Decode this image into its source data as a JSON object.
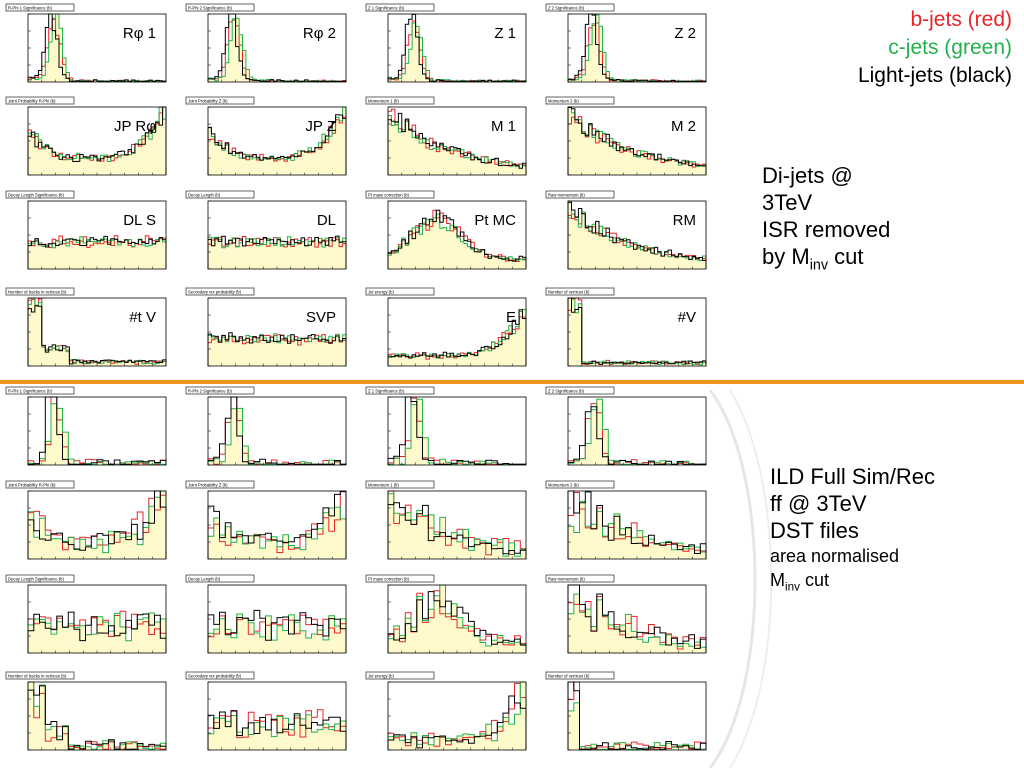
{
  "legend": {
    "b": "b-jets (red)",
    "c": "c-jets (green)",
    "light": "Light-jets (black)",
    "colors": {
      "b": "#e8252a",
      "c": "#22b14c",
      "light": "#000000"
    }
  },
  "note_top": {
    "line1": "Di-jets @",
    "line2": "3TeV",
    "line3": "ISR removed",
    "line4_pre": "by M",
    "line4_sub": "inv",
    "line4_post": " cut"
  },
  "note_bottom": {
    "line1": "ILD Full Sim/Rec",
    "line2": "ff @ 3TeV",
    "line3": "DST files",
    "line4": "area normalised",
    "line5_pre": "M",
    "line5_sub": "inv",
    "line5_post": " cut"
  },
  "colors": {
    "fill": "#fffacc",
    "divider": "#f0921e",
    "frame": "#000000"
  },
  "chart_data": [
    {
      "type": "area",
      "section": "di-jets",
      "title": "R-Phi 1 Significance  (b)",
      "label": "Rφ 1",
      "log_y": false,
      "ylim": [
        0,
        80
      ]
    },
    {
      "type": "area",
      "section": "di-jets",
      "title": "R-Phi 2 Significance  (b)",
      "label": "Rφ 2",
      "log_y": false,
      "ylim": [
        0,
        200
      ]
    },
    {
      "type": "area",
      "section": "di-jets",
      "title": "Z 1 Significance  (b)",
      "label": "Z 1",
      "log_y": false,
      "ylim": [
        0,
        50
      ]
    },
    {
      "type": "area",
      "section": "di-jets",
      "title": "Z 2 Significance  (b)",
      "label": "Z 2",
      "log_y": false,
      "ylim": [
        0,
        100
      ]
    },
    {
      "type": "area",
      "section": "di-jets",
      "title": "Joint Probability R-Phi  (b)",
      "label": "JP Rφ",
      "log_y": true
    },
    {
      "type": "area",
      "section": "di-jets",
      "title": "Joint Probability Z  (b)",
      "label": "JP Z",
      "log_y": true
    },
    {
      "type": "area",
      "section": "di-jets",
      "title": "Momentum 1  (b)",
      "label": "M 1",
      "log_y": true
    },
    {
      "type": "area",
      "section": "di-jets",
      "title": "Momentum 2  (b)",
      "label": "M 2",
      "log_y": true
    },
    {
      "type": "area",
      "section": "di-jets",
      "title": "Decay Length Significance  (b)",
      "label": "DL S",
      "log_y": true
    },
    {
      "type": "area",
      "section": "di-jets",
      "title": "Decay Length  (b)",
      "label": "DL",
      "log_y": true
    },
    {
      "type": "area",
      "section": "di-jets",
      "title": "Pt mass correction  (b)",
      "label": "Pt MC",
      "log_y": true
    },
    {
      "type": "area",
      "section": "di-jets",
      "title": "Raw momentum  (b)",
      "label": "RM",
      "log_y": true
    },
    {
      "type": "area",
      "section": "di-jets",
      "title": "Number of tracks in vertices  (b)",
      "label": "#t V",
      "log_y": false,
      "ylim": [
        0,
        10000
      ]
    },
    {
      "type": "area",
      "section": "di-jets",
      "title": "Secondary vtx probability  (b)",
      "label": "SVP",
      "log_y": true
    },
    {
      "type": "area",
      "section": "di-jets",
      "title": "Jet energy  (b)",
      "label": "E",
      "log_y": false,
      "ylim": [
        0,
        1800
      ]
    },
    {
      "type": "area",
      "section": "di-jets",
      "title": "Number of vertices  (b)",
      "label": "#V",
      "log_y": false,
      "ylim": [
        0,
        16000
      ]
    },
    {
      "type": "area",
      "section": "ILD",
      "title": "R-Phi 1 Significance  (b)",
      "label": "",
      "log_y": false,
      "ylim": [
        0,
        14
      ]
    },
    {
      "type": "area",
      "section": "ILD",
      "title": "R-Phi 2 Significance  (b)",
      "label": "",
      "log_y": false,
      "ylim": [
        0,
        25
      ]
    },
    {
      "type": "area",
      "section": "ILD",
      "title": "Z 1 Significance  (b)",
      "label": "",
      "log_y": false,
      "ylim": [
        0,
        12
      ]
    },
    {
      "type": "area",
      "section": "ILD",
      "title": "Z 2 Significance  (b)",
      "label": "",
      "log_y": false,
      "ylim": [
        0,
        14
      ]
    },
    {
      "type": "area",
      "section": "ILD",
      "title": "Joint Probability R-Phi  (b)",
      "label": "",
      "log_y": true
    },
    {
      "type": "area",
      "section": "ILD",
      "title": "Joint Probability Z  (b)",
      "label": "",
      "log_y": true
    },
    {
      "type": "area",
      "section": "ILD",
      "title": "Momentum 1  (b)",
      "label": "",
      "log_y": true
    },
    {
      "type": "area",
      "section": "ILD",
      "title": "Momentum 2  (b)",
      "label": "",
      "log_y": true
    },
    {
      "type": "area",
      "section": "ILD",
      "title": "Decay Length Significance  (b)",
      "label": "",
      "log_y": true
    },
    {
      "type": "area",
      "section": "ILD",
      "title": "Decay Length  (b)",
      "label": "",
      "log_y": true
    },
    {
      "type": "area",
      "section": "ILD",
      "title": "Pt mass correction  (b)",
      "label": "",
      "log_y": true
    },
    {
      "type": "area",
      "section": "ILD",
      "title": "Raw momentum  (b)",
      "label": "",
      "log_y": true
    },
    {
      "type": "area",
      "section": "ILD",
      "title": "Number of tracks in vertices  (b)",
      "label": "",
      "log_y": false,
      "ylim": [
        0,
        250
      ]
    },
    {
      "type": "area",
      "section": "ILD",
      "title": "Secondary vtx probability  (b)",
      "label": "",
      "log_y": true
    },
    {
      "type": "area",
      "section": "ILD",
      "title": "Jet energy  (b)",
      "label": "",
      "log_y": false,
      "ylim": [
        0,
        12
      ]
    },
    {
      "type": "area",
      "section": "ILD",
      "title": "Number of vertices  (b)",
      "label": "",
      "log_y": false,
      "ylim": [
        0,
        250
      ]
    }
  ]
}
